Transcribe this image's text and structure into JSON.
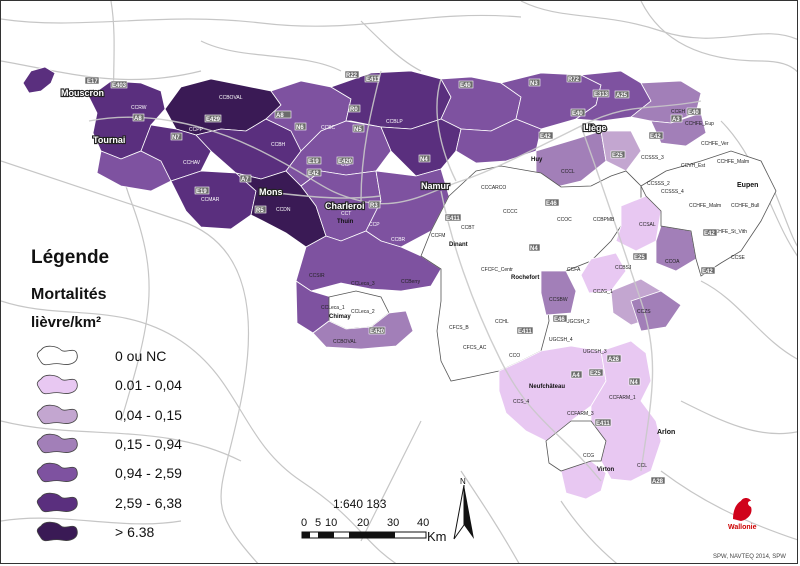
{
  "colors": {
    "class0": "#ffffff",
    "class1": "#e8c8f2",
    "class2": "#c3a6d0",
    "class3": "#a27fb8",
    "class4": "#7e52a0",
    "class5": "#5a2f7e",
    "class6": "#3a1a55",
    "road": "#bdbdbd",
    "boundary": "#555555"
  },
  "legend": {
    "title": "Légende",
    "subtitle1": "Mortalités",
    "subtitle2": "lièvre/km²",
    "classes": [
      {
        "label": "0 ou NC",
        "color_key": "class0"
      },
      {
        "label": "0.01 - 0,04",
        "color_key": "class1"
      },
      {
        "label": "0,04 - 0,15",
        "color_key": "class2"
      },
      {
        "label": "0,15 - 0,94",
        "color_key": "class3"
      },
      {
        "label": "0,94 - 2,59",
        "color_key": "class4"
      },
      {
        "label": "2,59 - 6,38",
        "color_key": "class5"
      },
      {
        "label": "> 6.38",
        "color_key": "class6"
      }
    ]
  },
  "scale": {
    "ratio": "1:640 183",
    "ticks": [
      "0",
      "5",
      "10",
      "20",
      "30",
      "40"
    ],
    "unit": "Km"
  },
  "north": {
    "label": "N"
  },
  "cities": [
    {
      "name": "Mouscron"
    },
    {
      "name": "Tournai"
    },
    {
      "name": "Mons"
    },
    {
      "name": "Charleroi"
    },
    {
      "name": "Namur"
    },
    {
      "name": "Liège"
    },
    {
      "name": "Huy"
    },
    {
      "name": "Dinant"
    },
    {
      "name": "Rochefort"
    },
    {
      "name": "Chimay"
    },
    {
      "name": "Thuin"
    },
    {
      "name": "Neufchâteau"
    },
    {
      "name": "Arlon"
    },
    {
      "name": "Virton"
    },
    {
      "name": "Eupen"
    }
  ],
  "highways": [
    "E17",
    "E403",
    "E42",
    "A8",
    "E429",
    "A16",
    "N6",
    "E19",
    "E420",
    "R3",
    "R0",
    "N5",
    "N4",
    "A4",
    "E40",
    "A3",
    "E25",
    "N63",
    "E411",
    "N90",
    "R22",
    "E41",
    "R72",
    "E313",
    "E46",
    "N89",
    "A28",
    "A26",
    "N29",
    "R5",
    "A7",
    "A10",
    "A15",
    "A14"
  ],
  "zones": [
    "CCRS",
    "CCRW",
    "CCSOP",
    "CCPP",
    "CCDA",
    "CCBH",
    "CCMAR",
    "CCT",
    "CCBC",
    "CCBLP",
    "CCDRT",
    "CCP",
    "CCDN",
    "CCPM",
    "CCBR",
    "CCCH",
    "CCS",
    "CCLeca_1",
    "CCLeca_2",
    "CCLeca_3",
    "CCBOVAL",
    "CCBU",
    "CCHAV",
    "CCCARCO",
    "CCCC",
    "CCBT",
    "CCFM",
    "CCEH",
    "CCCC",
    "CCFCE",
    "CCCOC",
    "CCBPMB",
    "CCSAL",
    "CCBSJ",
    "CCOA",
    "CCSSS_2",
    "CCSSS_3",
    "CCSSS_4",
    "CCVH_Est",
    "CCVH_Mal",
    "CCHFE_Est",
    "CCHFE_Malm",
    "CCHFE_Bull",
    "CCHFE_St_Vith",
    "CCHFE_Ver",
    "CCHFE_Eup",
    "CCVH_Bull",
    "CCSE",
    "CCEL",
    "CCHL",
    "CCFCS_B",
    "CCFCS_AC",
    "CCO",
    "UGCSH_1",
    "UGCSH_2",
    "UGCSH_3",
    "UGCSH_4",
    "CCZG_1",
    "CCZG_2",
    "CCZS",
    "CCFARM_1",
    "CCFARM_2",
    "CCFARM_3",
    "CCS_4",
    "CCG",
    "CCL",
    "CCH",
    "CCGOV",
    "CCSE_1",
    "CCFA"
  ],
  "logo": {
    "text": "Wallonie"
  },
  "credit": "SPW, NAVTEQ 2014, SPW"
}
